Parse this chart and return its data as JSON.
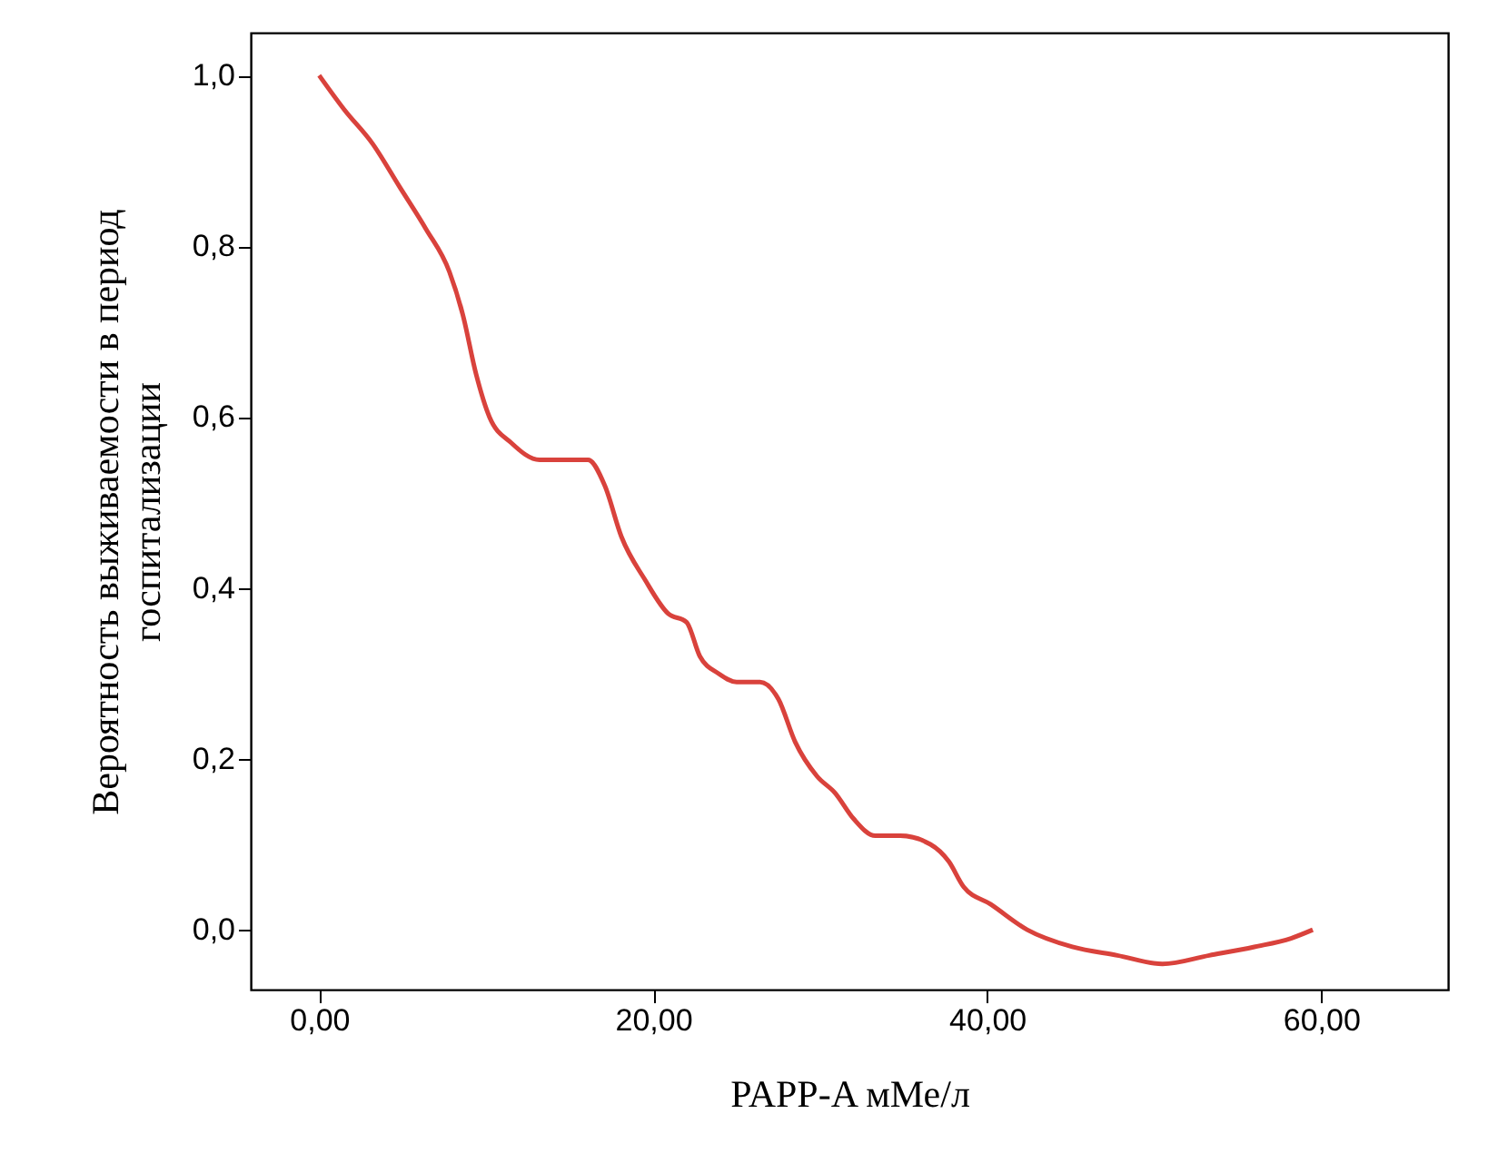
{
  "chart_data": {
    "type": "line",
    "xlabel": "PAPP-A мМе/л",
    "ylabel": "Вероятность выживаемости в период\nгоспитализации",
    "x": [
      0,
      1.5,
      3.2,
      4.8,
      6.4,
      7.8,
      8.6,
      9.4,
      10.2,
      11.5,
      13.2,
      14.8,
      16.1,
      17.1,
      18.1,
      19.5,
      20.9,
      22.0,
      22.8,
      23.9,
      25.0,
      26.4,
      27.5,
      28.5,
      29.8,
      30.9,
      32.0,
      33.3,
      34.8,
      36.6,
      37.7,
      38.6,
      40.2,
      42.4,
      45.1,
      47.8,
      50.5,
      53.3,
      56.0,
      58.2,
      59.5
    ],
    "series": [
      {
        "color": "#d9423c",
        "values": [
          1.0,
          0.96,
          0.92,
          0.87,
          0.82,
          0.77,
          0.72,
          0.65,
          0.6,
          0.57,
          0.55,
          0.55,
          0.55,
          0.52,
          0.46,
          0.41,
          0.37,
          0.36,
          0.32,
          0.3,
          0.29,
          0.29,
          0.27,
          0.22,
          0.18,
          0.16,
          0.13,
          0.11,
          0.11,
          0.1,
          0.08,
          0.05,
          0.03,
          0.0,
          -0.02,
          -0.03,
          -0.04,
          -0.03,
          -0.02,
          -0.01,
          0.0
        ]
      }
    ],
    "xlim": [
      -4.1,
      67.6
    ],
    "ylim": [
      -0.07,
      1.05
    ],
    "xticks": [
      {
        "value": 0,
        "label": "0,00"
      },
      {
        "value": 20,
        "label": "20,00"
      },
      {
        "value": 40,
        "label": "40,00"
      },
      {
        "value": 60,
        "label": "60,00"
      }
    ],
    "yticks": [
      {
        "value": 0,
        "label": "0,0"
      },
      {
        "value": 0.2,
        "label": "0,2"
      },
      {
        "value": 0.4,
        "label": "0,4"
      },
      {
        "value": 0.6,
        "label": "0,6"
      },
      {
        "value": 0.8,
        "label": "0,8"
      },
      {
        "value": 1.0,
        "label": "1,0"
      }
    ],
    "grid": false,
    "marker": "none",
    "line_style": "solid"
  }
}
